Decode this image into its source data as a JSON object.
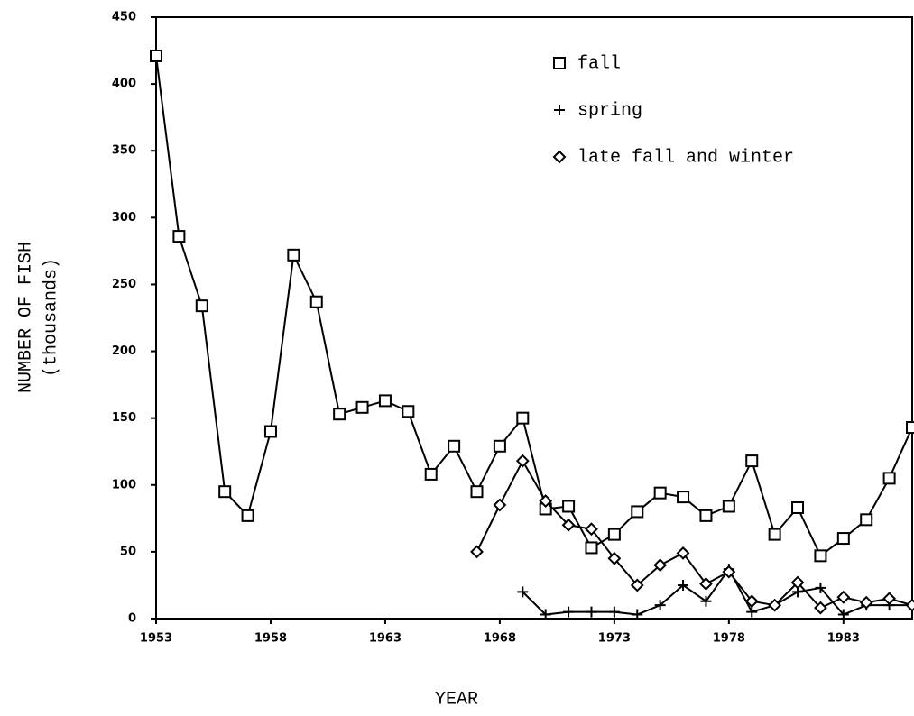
{
  "chart_data": {
    "type": "line",
    "x_label": "YEAR",
    "y_label": [
      "NUMBER OF FISH",
      "(thousands)"
    ],
    "xlim": [
      1953,
      1986
    ],
    "xticks": [
      1953,
      1958,
      1963,
      1968,
      1973,
      1978,
      1983
    ],
    "ylim": [
      0,
      450
    ],
    "yticks": [
      0,
      50,
      100,
      150,
      200,
      250,
      300,
      350,
      400,
      450
    ],
    "legend": "upper right",
    "series": [
      {
        "name": "fall",
        "marker": "square",
        "color": "#000000",
        "x": [
          1953,
          1954,
          1955,
          1956,
          1957,
          1958,
          1959,
          1960,
          1961,
          1962,
          1963,
          1964,
          1965,
          1966,
          1967,
          1968,
          1969,
          1970,
          1971,
          1972,
          1973,
          1974,
          1975,
          1976,
          1977,
          1978,
          1979,
          1980,
          1981,
          1982,
          1983,
          1984,
          1985,
          1986
        ],
        "values": [
          421,
          286,
          234,
          95,
          77,
          140,
          272,
          237,
          153,
          158,
          163,
          155,
          108,
          129,
          95,
          129,
          150,
          82,
          84,
          53,
          63,
          80,
          94,
          91,
          77,
          84,
          118,
          63,
          83,
          47,
          60,
          74,
          105,
          143
        ]
      },
      {
        "name": "spring",
        "marker": "plus",
        "color": "#000000",
        "x": [
          1969,
          1970,
          1971,
          1972,
          1973,
          1974,
          1975,
          1976,
          1977,
          1978,
          1979,
          1980,
          1981,
          1982,
          1983,
          1984,
          1985,
          1986
        ],
        "values": [
          20,
          3,
          5,
          5,
          5,
          3,
          10,
          25,
          13,
          37,
          5,
          10,
          20,
          23,
          3,
          10,
          10,
          10
        ]
      },
      {
        "name": "late fall and winter",
        "marker": "diamond",
        "color": "#000000",
        "x": [
          1967,
          1968,
          1969,
          1970,
          1971,
          1972,
          1973,
          1974,
          1975,
          1976,
          1977,
          1978,
          1979,
          1980,
          1981,
          1982,
          1983,
          1984,
          1985,
          1986
        ],
        "values": [
          50,
          85,
          118,
          88,
          70,
          67,
          45,
          25,
          40,
          49,
          26,
          35,
          13,
          10,
          27,
          8,
          16,
          12,
          15,
          10
        ]
      }
    ]
  }
}
